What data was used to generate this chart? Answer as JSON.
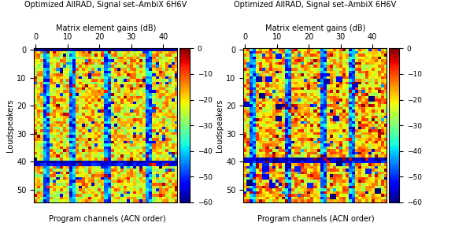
{
  "title1": "Optimized AllRAD, Signal set–AmbiX 6H6V",
  "title2": "Optimized AllRAD, Signal set–AmbiX 6H6V",
  "xlabel": "Program channels (ACN order)",
  "ylabel": "Loudspeakers",
  "top_xlabel": "Matrix element gains (dB)",
  "vmin": -60,
  "vmax": 0,
  "n_cols": 45,
  "n_rows": 55,
  "xticks": [
    0,
    10,
    20,
    30,
    40
  ],
  "yticks": [
    0,
    10,
    20,
    30,
    40,
    50
  ],
  "colorbar_ticks": [
    0,
    -10,
    -20,
    -30,
    -40,
    -50,
    -60
  ]
}
